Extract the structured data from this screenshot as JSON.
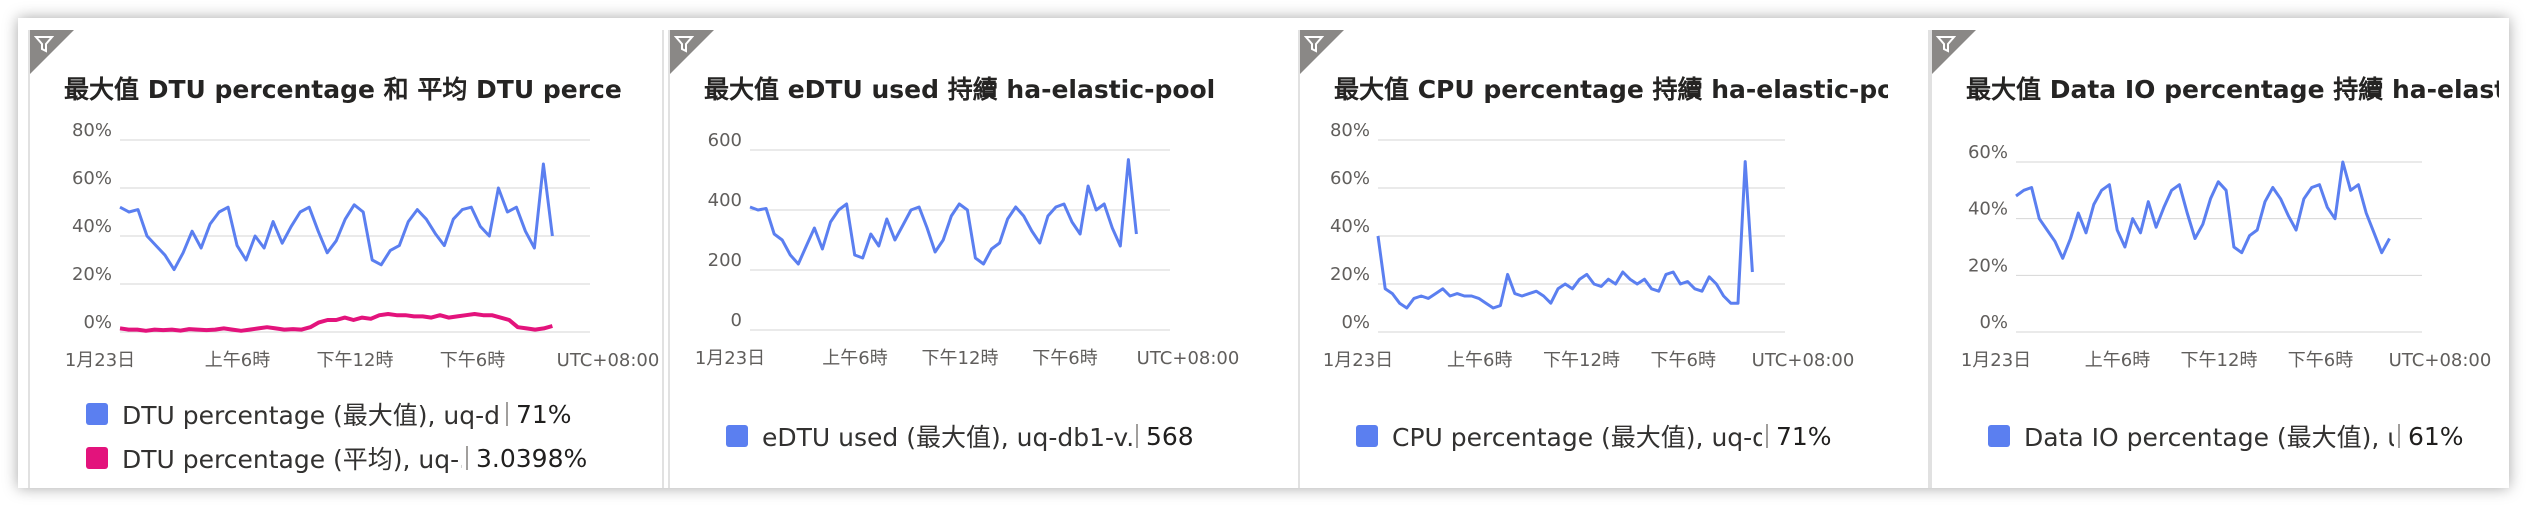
{
  "colors": {
    "max": "#5b7ff0",
    "avg": "#e3137c",
    "grid": "#d6d6d6",
    "axis": "#c8c6c4"
  },
  "tiles": [
    {
      "title": "最大值 DTU percentage 和 平均 DTU percen...",
      "yticks": [
        "80%",
        "60%",
        "40%",
        "20%",
        "0%"
      ],
      "xticks": [
        "1月23日",
        "上午6時",
        "下午12時",
        "下午6時",
        "UTC+08:00"
      ],
      "legend": [
        {
          "label": "DTU percentage (最大值), uq-d...",
          "value": "71%",
          "color": "max"
        },
        {
          "label": "DTU percentage (平均), uq-...",
          "value": "3.0398%",
          "color": "avg"
        }
      ]
    },
    {
      "title": "最大值 eDTU used 持續 ha-elastic-pool",
      "yticks": [
        "600",
        "400",
        "200",
        "0"
      ],
      "xticks": [
        "1月23日",
        "上午6時",
        "下午12時",
        "下午6時",
        "UTC+08:00"
      ],
      "legend": [
        {
          "label": "eDTU used (最大值), uq-db1-v...",
          "value": "568",
          "color": "max"
        }
      ]
    },
    {
      "title": "最大值 CPU percentage 持續 ha-elastic-pool",
      "yticks": [
        "80%",
        "60%",
        "40%",
        "20%",
        "0%"
      ],
      "xticks": [
        "1月23日",
        "上午6時",
        "下午12時",
        "下午6時",
        "UTC+08:00"
      ],
      "legend": [
        {
          "label": "CPU percentage (最大值), uq-d...",
          "value": "71%",
          "color": "max"
        }
      ]
    },
    {
      "title": "最大值 Data IO percentage 持續 ha-elastic-...",
      "yticks": [
        "60%",
        "40%",
        "20%",
        "0%"
      ],
      "xticks": [
        "1月23日",
        "上午6時",
        "下午12時",
        "下午6時",
        "UTC+08:00"
      ],
      "legend": [
        {
          "label": "Data IO percentage (最大值), u...",
          "value": "61%",
          "color": "max"
        }
      ]
    }
  ],
  "chart_data": [
    {
      "type": "line",
      "ylim": [
        0,
        80
      ],
      "series": [
        {
          "name": "DTU percentage (最大值), uq-d...",
          "values": [
            52,
            50,
            51,
            40,
            36,
            32,
            26,
            33,
            42,
            35,
            45,
            50,
            52,
            36,
            30,
            40,
            35,
            46,
            37,
            44,
            50,
            52,
            42,
            33,
            38,
            47,
            53,
            50,
            30,
            28,
            34,
            36,
            46,
            51,
            47,
            41,
            36,
            47,
            51,
            52,
            44,
            40,
            60,
            50,
            52,
            42,
            35,
            70,
            40
          ]
        },
        {
          "name": "DTU percentage (平均), uq-...",
          "values": [
            1.5,
            1,
            1,
            0.5,
            1,
            0.8,
            1,
            0.6,
            1.2,
            1,
            0.8,
            1,
            1.5,
            1,
            0.5,
            1,
            1.5,
            2,
            1.5,
            1,
            1.2,
            1,
            2,
            4,
            5,
            5,
            6,
            5,
            6,
            5.5,
            7,
            7.5,
            7,
            7,
            6.5,
            6.5,
            6,
            7,
            6,
            6.5,
            7,
            7.5,
            7,
            7,
            6,
            5,
            2,
            1.5,
            1,
            1.5,
            2.5
          ]
        }
      ]
    },
    {
      "type": "line",
      "ylim": [
        0,
        600
      ],
      "series": [
        {
          "name": "eDTU used (最大值), uq-db1-v...",
          "values": [
            410,
            400,
            405,
            320,
            300,
            250,
            220,
            280,
            340,
            270,
            360,
            400,
            420,
            250,
            240,
            320,
            280,
            370,
            300,
            350,
            400,
            410,
            340,
            260,
            300,
            380,
            420,
            400,
            240,
            220,
            270,
            290,
            370,
            410,
            380,
            330,
            290,
            380,
            410,
            420,
            360,
            320,
            480,
            400,
            420,
            340,
            280,
            568,
            320
          ]
        }
      ]
    },
    {
      "type": "line",
      "ylim": [
        0,
        80
      ],
      "series": [
        {
          "name": "CPU percentage (最大值), uq-d...",
          "values": [
            40,
            18,
            16,
            12,
            10,
            14,
            15,
            14,
            16,
            18,
            15,
            16,
            15,
            15,
            14,
            12,
            10,
            11,
            24,
            16,
            15,
            16,
            17,
            15,
            12,
            18,
            20,
            18,
            22,
            24,
            20,
            19,
            22,
            20,
            25,
            22,
            20,
            22,
            18,
            17,
            24,
            25,
            20,
            21,
            18,
            17,
            23,
            20,
            15,
            12,
            12,
            71,
            25
          ]
        }
      ]
    },
    {
      "type": "line",
      "ylim": [
        0,
        60
      ],
      "series": [
        {
          "name": "Data IO percentage (最大值), u...",
          "values": [
            48,
            50,
            51,
            40,
            36,
            32,
            26,
            33,
            42,
            35,
            45,
            50,
            52,
            36,
            30,
            40,
            35,
            46,
            37,
            44,
            50,
            52,
            42,
            33,
            38,
            47,
            53,
            50,
            30,
            28,
            34,
            36,
            46,
            51,
            47,
            41,
            36,
            47,
            51,
            52,
            44,
            40,
            60,
            50,
            52,
            42,
            35,
            28,
            33
          ]
        }
      ]
    }
  ]
}
